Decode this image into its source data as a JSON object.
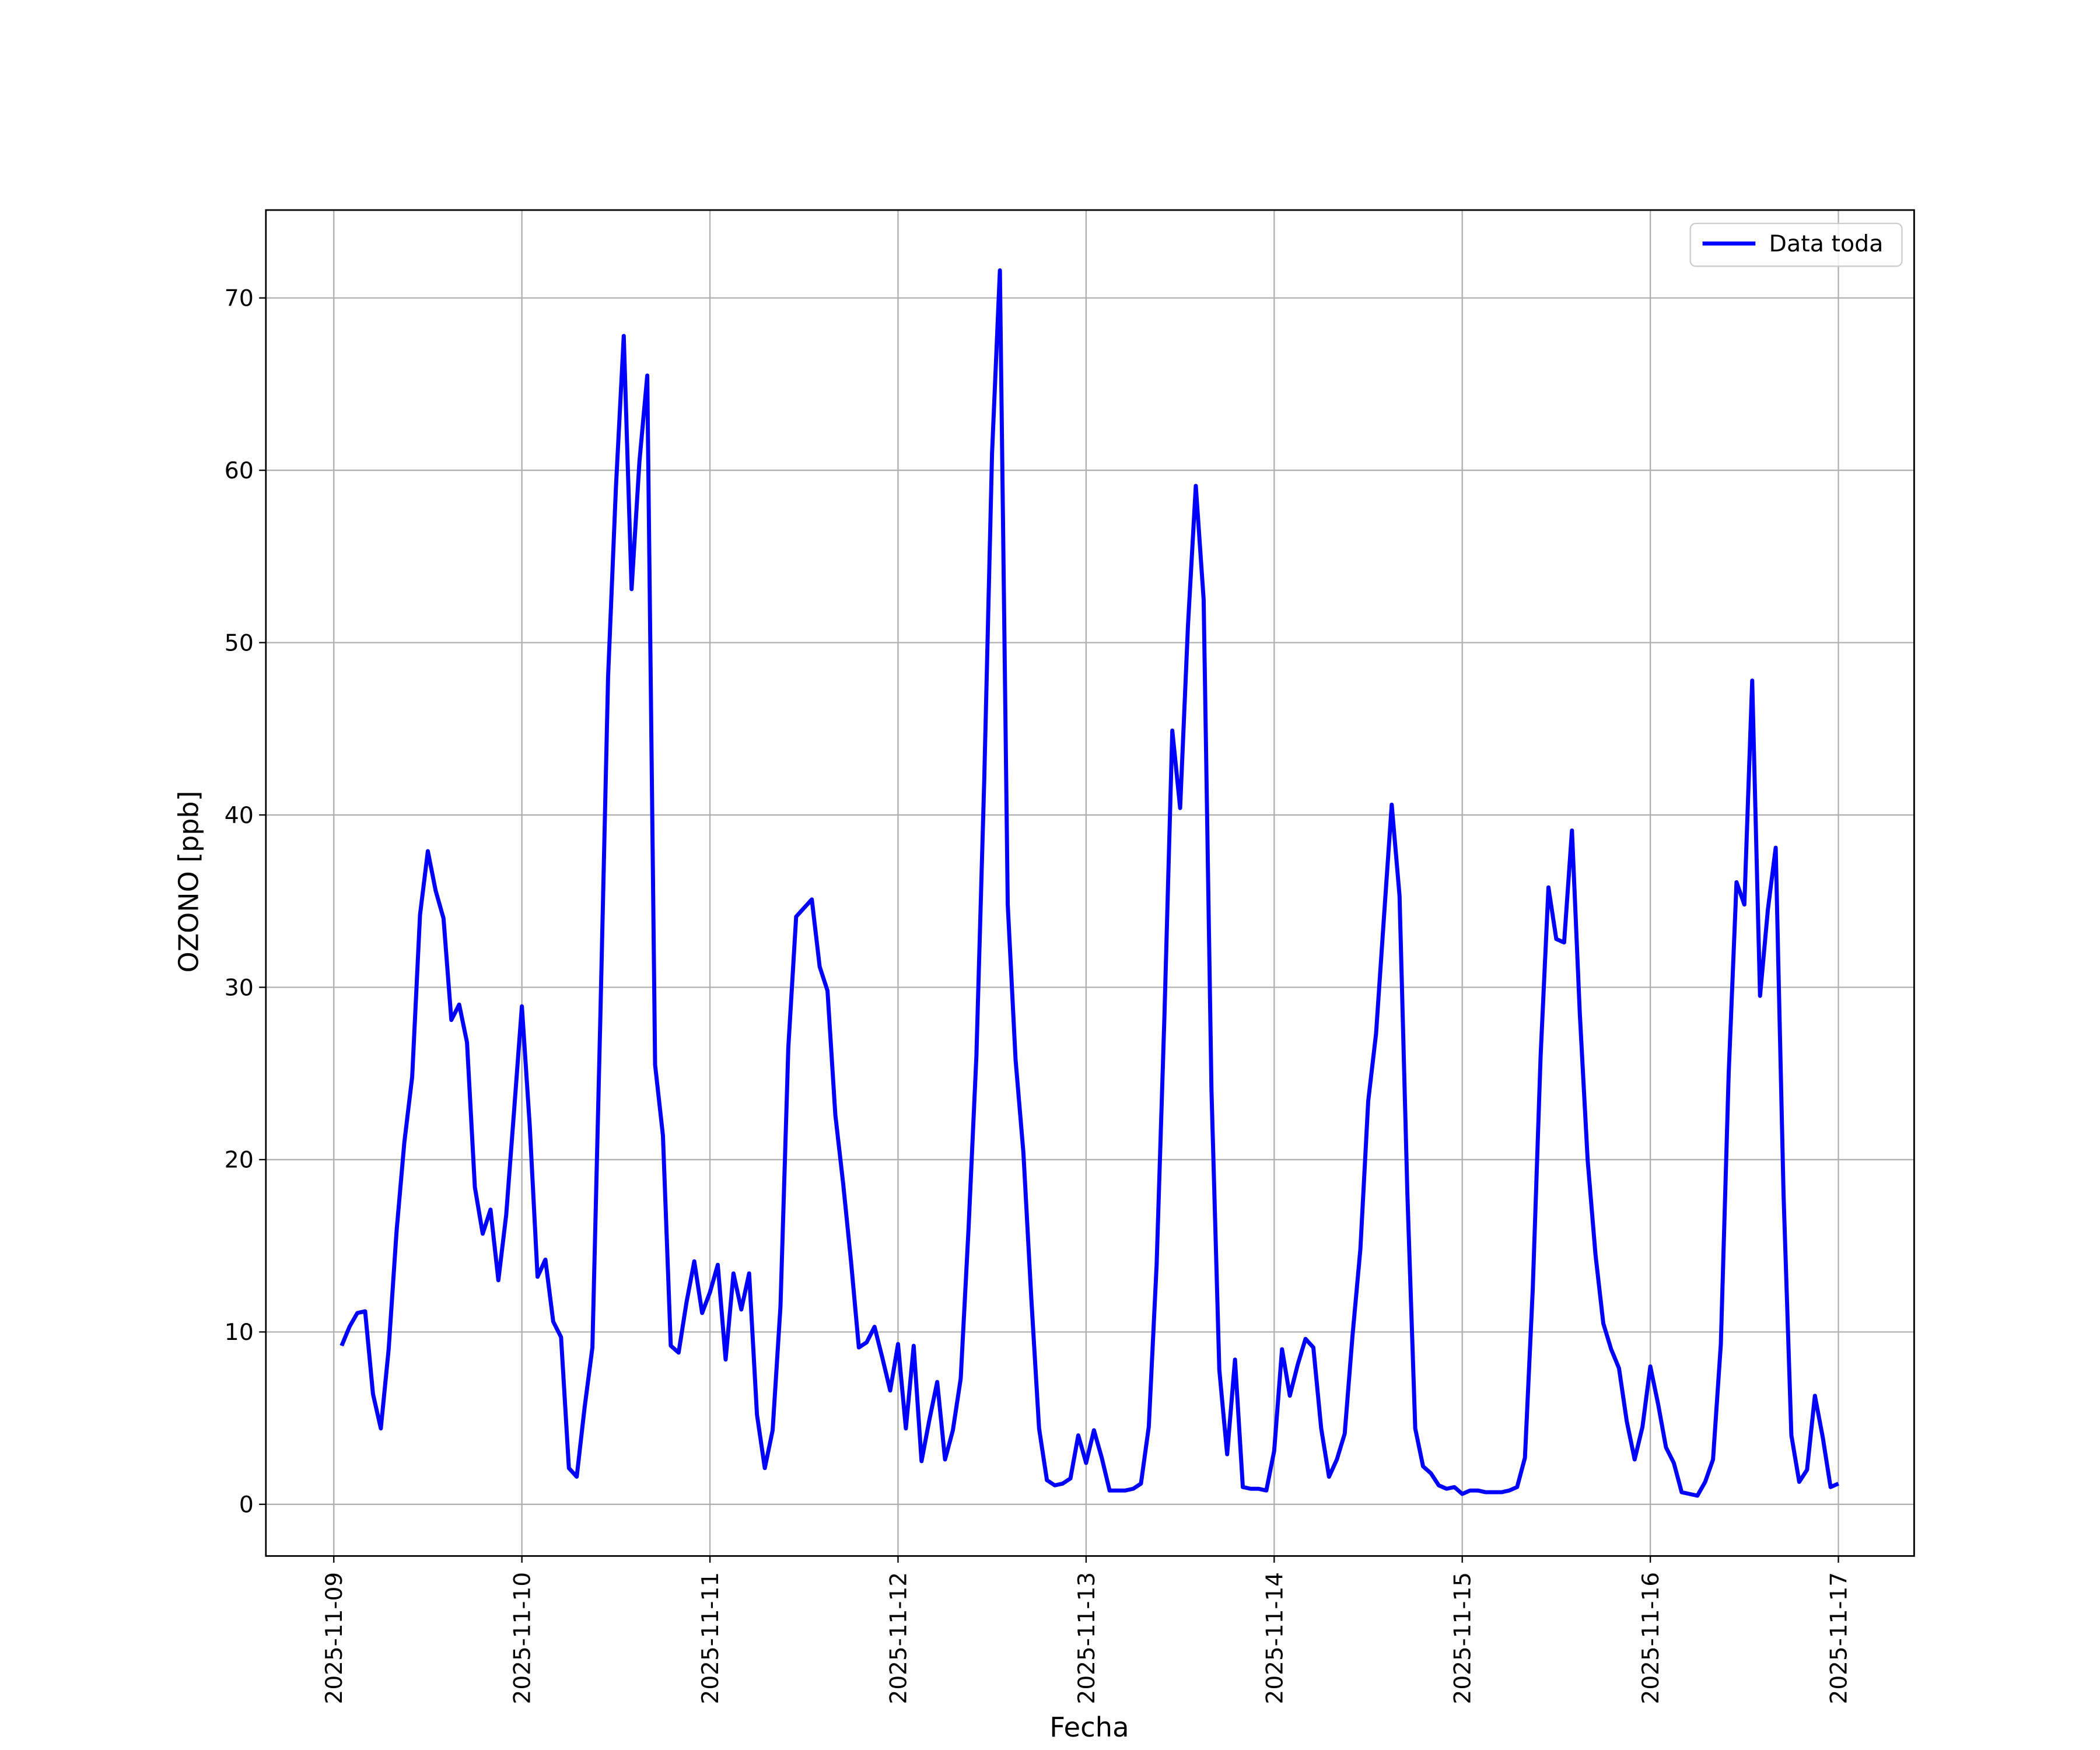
{
  "chart_data": {
    "type": "line",
    "xlabel": "Fecha",
    "ylabel": "OZONO [ppb]",
    "ylim": [
      -3.0,
      75.1
    ],
    "yticks": [
      0,
      10,
      20,
      30,
      40,
      50,
      60,
      70
    ],
    "xlim": [
      "2025-11-08 15:20",
      "2025-11-17 09:40"
    ],
    "xticks": [
      "2025-11-09",
      "2025-11-10",
      "2025-11-11",
      "2025-11-12",
      "2025-11-13",
      "2025-11-14",
      "2025-11-15",
      "2025-11-16",
      "2025-11-17"
    ],
    "grid": true,
    "legend": "upper right",
    "x": [
      "2025-11-09 01:00",
      "2025-11-09 02:00",
      "2025-11-09 03:00",
      "2025-11-09 04:00",
      "2025-11-09 05:00",
      "2025-11-09 06:00",
      "2025-11-09 07:00",
      "2025-11-09 08:00",
      "2025-11-09 09:00",
      "2025-11-09 10:00",
      "2025-11-09 11:00",
      "2025-11-09 12:00",
      "2025-11-09 13:00",
      "2025-11-09 14:00",
      "2025-11-09 15:00",
      "2025-11-09 16:00",
      "2025-11-09 17:00",
      "2025-11-09 18:00",
      "2025-11-09 19:00",
      "2025-11-09 20:00",
      "2025-11-09 21:00",
      "2025-11-09 22:00",
      "2025-11-09 23:00",
      "2025-11-10 00:00",
      "2025-11-10 01:00",
      "2025-11-10 02:00",
      "2025-11-10 03:00",
      "2025-11-10 04:00",
      "2025-11-10 05:00",
      "2025-11-10 06:00",
      "2025-11-10 07:00",
      "2025-11-10 08:00",
      "2025-11-10 09:00",
      "2025-11-10 10:00",
      "2025-11-10 11:00",
      "2025-11-10 12:00",
      "2025-11-10 13:00",
      "2025-11-10 14:00",
      "2025-11-10 15:00",
      "2025-11-10 16:00",
      "2025-11-10 17:00",
      "2025-11-10 18:00",
      "2025-11-10 19:00",
      "2025-11-10 20:00",
      "2025-11-10 21:00",
      "2025-11-10 22:00",
      "2025-11-10 23:00",
      "2025-11-11 00:00",
      "2025-11-11 01:00",
      "2025-11-11 02:00",
      "2025-11-11 03:00",
      "2025-11-11 04:00",
      "2025-11-11 05:00",
      "2025-11-11 06:00",
      "2025-11-11 07:00",
      "2025-11-11 08:00",
      "2025-11-11 09:00",
      "2025-11-11 10:00",
      "2025-11-11 11:00",
      "2025-11-11 12:00",
      "2025-11-11 13:00",
      "2025-11-11 14:00",
      "2025-11-11 15:00",
      "2025-11-11 16:00",
      "2025-11-11 17:00",
      "2025-11-11 18:00",
      "2025-11-11 19:00",
      "2025-11-11 20:00",
      "2025-11-11 21:00",
      "2025-11-11 22:00",
      "2025-11-11 23:00",
      "2025-11-12 00:00",
      "2025-11-12 01:00",
      "2025-11-12 02:00",
      "2025-11-12 03:00",
      "2025-11-12 04:00",
      "2025-11-12 05:00",
      "2025-11-12 06:00",
      "2025-11-12 07:00",
      "2025-11-12 08:00",
      "2025-11-12 09:00",
      "2025-11-12 10:00",
      "2025-11-12 11:00",
      "2025-11-12 12:00",
      "2025-11-12 13:00",
      "2025-11-12 14:00",
      "2025-11-12 15:00",
      "2025-11-12 16:00",
      "2025-11-12 17:00",
      "2025-11-12 18:00",
      "2025-11-12 19:00",
      "2025-11-12 20:00",
      "2025-11-12 21:00",
      "2025-11-12 22:00",
      "2025-11-12 23:00",
      "2025-11-13 00:00",
      "2025-11-13 01:00",
      "2025-11-13 02:00",
      "2025-11-13 03:00",
      "2025-11-13 04:00",
      "2025-11-13 05:00",
      "2025-11-13 06:00",
      "2025-11-13 07:00",
      "2025-11-13 08:00",
      "2025-11-13 09:00",
      "2025-11-13 10:00",
      "2025-11-13 11:00",
      "2025-11-13 12:00",
      "2025-11-13 13:00",
      "2025-11-13 14:00",
      "2025-11-13 15:00",
      "2025-11-13 16:00",
      "2025-11-13 17:00",
      "2025-11-13 18:00",
      "2025-11-13 19:00",
      "2025-11-13 20:00",
      "2025-11-13 21:00",
      "2025-11-13 22:00",
      "2025-11-13 23:00",
      "2025-11-14 00:00",
      "2025-11-14 01:00",
      "2025-11-14 02:00",
      "2025-11-14 03:00",
      "2025-11-14 04:00",
      "2025-11-14 05:00",
      "2025-11-14 06:00",
      "2025-11-14 07:00",
      "2025-11-14 08:00",
      "2025-11-14 09:00",
      "2025-11-14 10:00",
      "2025-11-14 11:00",
      "2025-11-14 12:00",
      "2025-11-14 13:00",
      "2025-11-14 14:00",
      "2025-11-14 15:00",
      "2025-11-14 16:00",
      "2025-11-14 17:00",
      "2025-11-14 18:00",
      "2025-11-14 19:00",
      "2025-11-14 20:00",
      "2025-11-14 21:00",
      "2025-11-14 22:00",
      "2025-11-14 23:00",
      "2025-11-15 00:00",
      "2025-11-15 01:00",
      "2025-11-15 02:00",
      "2025-11-15 03:00",
      "2025-11-15 04:00",
      "2025-11-15 05:00",
      "2025-11-15 06:00",
      "2025-11-15 07:00",
      "2025-11-15 08:00",
      "2025-11-15 09:00",
      "2025-11-15 10:00",
      "2025-11-15 11:00",
      "2025-11-15 12:00",
      "2025-11-15 13:00",
      "2025-11-15 14:00",
      "2025-11-15 15:00",
      "2025-11-15 16:00",
      "2025-11-15 17:00",
      "2025-11-15 18:00",
      "2025-11-15 19:00",
      "2025-11-15 20:00",
      "2025-11-15 21:00",
      "2025-11-15 22:00",
      "2025-11-15 23:00",
      "2025-11-16 00:00",
      "2025-11-16 01:00",
      "2025-11-16 02:00",
      "2025-11-16 03:00",
      "2025-11-16 04:00",
      "2025-11-16 05:00",
      "2025-11-16 06:00",
      "2025-11-16 07:00",
      "2025-11-16 08:00",
      "2025-11-16 09:00",
      "2025-11-16 10:00",
      "2025-11-16 11:00",
      "2025-11-16 12:00",
      "2025-11-16 13:00",
      "2025-11-16 14:00",
      "2025-11-16 15:00",
      "2025-11-16 16:00",
      "2025-11-16 17:00",
      "2025-11-16 18:00",
      "2025-11-16 19:00",
      "2025-11-16 20:00",
      "2025-11-16 21:00",
      "2025-11-16 22:00",
      "2025-11-16 23:00",
      "2025-11-17 00:00"
    ],
    "series": [
      {
        "name": "Data toda",
        "color": "#0000ff",
        "values": [
          9.2,
          10.3,
          11.1,
          11.2,
          6.4,
          4.4,
          9.0,
          15.8,
          21.0,
          24.8,
          34.2,
          37.9,
          35.6,
          34.0,
          28.1,
          29.0,
          26.8,
          18.4,
          15.7,
          17.1,
          13.0,
          16.8,
          22.8,
          28.9,
          22.0,
          13.2,
          14.2,
          10.6,
          9.7,
          2.1,
          1.6,
          5.6,
          9.1,
          28.0,
          48.0,
          59.0,
          67.8,
          53.1,
          60.5,
          65.5,
          25.5,
          21.4,
          9.2,
          8.8,
          11.7,
          14.1,
          11.1,
          12.3,
          13.9,
          8.4,
          13.4,
          11.3,
          13.4,
          5.2,
          2.1,
          4.3,
          11.5,
          26.5,
          34.1,
          34.6,
          35.1,
          31.2,
          29.8,
          22.6,
          18.6,
          14.1,
          9.1,
          9.4,
          10.3,
          8.5,
          6.6,
          9.3,
          4.4,
          9.2,
          2.5,
          4.9,
          7.1,
          2.6,
          4.3,
          7.3,
          16.0,
          26.0,
          42.0,
          61.0,
          71.6,
          34.8,
          25.8,
          20.4,
          12.0,
          4.4,
          1.4,
          1.1,
          1.2,
          1.5,
          4.0,
          2.4,
          4.3,
          2.7,
          0.8,
          0.8,
          0.8,
          0.9,
          1.2,
          4.5,
          13.9,
          28.4,
          44.9,
          40.4,
          51.0,
          59.1,
          52.5,
          24.0,
          7.8,
          2.9,
          8.4,
          1.0,
          0.9,
          0.9,
          0.8,
          3.1,
          9.0,
          6.3,
          8.1,
          9.6,
          9.1,
          4.4,
          1.6,
          2.6,
          4.1,
          9.8,
          14.8,
          23.4,
          27.3,
          34.0,
          40.6,
          35.3,
          18.0,
          4.4,
          2.2,
          1.8,
          1.1,
          0.9,
          1.0,
          0.6,
          0.8,
          0.8,
          0.7,
          0.7,
          0.7,
          0.8,
          1.0,
          2.7,
          12.5,
          26.0,
          35.8,
          32.8,
          32.6,
          39.1,
          28.5,
          20.0,
          14.5,
          10.5,
          9.0,
          7.9,
          4.8,
          2.6,
          4.5,
          8.0,
          5.8,
          3.3,
          2.4,
          0.7,
          0.6,
          0.5,
          1.3,
          2.6,
          9.3,
          25.0,
          36.1,
          34.8,
          47.8,
          29.5,
          34.5,
          38.1,
          18.0,
          4.0,
          1.3,
          2.0,
          6.3,
          3.9,
          1.0,
          1.2
        ]
      }
    ]
  }
}
